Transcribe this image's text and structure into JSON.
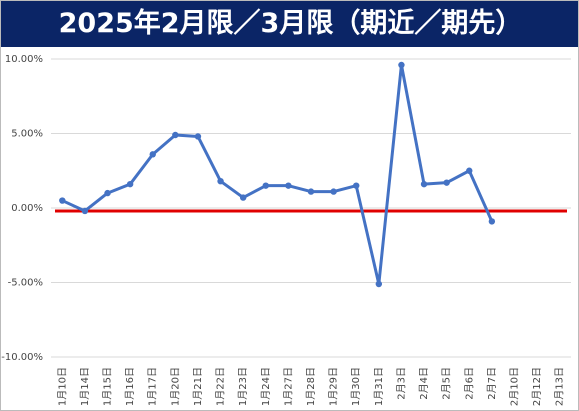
{
  "chart_data": {
    "type": "line",
    "title": "2025年2月限／3月限（期近／期先）",
    "categories": [
      "1月10日",
      "1月14日",
      "1月15日",
      "1月16日",
      "1月17日",
      "1月20日",
      "1月21日",
      "1月22日",
      "1月23日",
      "1月24日",
      "1月27日",
      "1月28日",
      "1月29日",
      "1月30日",
      "1月31日",
      "2月3日",
      "2月4日",
      "2月5日",
      "2月6日",
      "2月7日",
      "2月10日",
      "2月12日",
      "2月13日"
    ],
    "series": [
      {
        "color": "#4472c4",
        "values": [
          0.5,
          -0.2,
          1.0,
          1.6,
          3.6,
          4.9,
          4.8,
          1.8,
          0.7,
          1.5,
          1.5,
          1.1,
          1.1,
          1.5,
          -5.1,
          9.6,
          1.6,
          1.7,
          2.5,
          -0.9,
          null,
          null,
          null
        ]
      }
    ],
    "hline": {
      "value": -0.2,
      "color": "#e00000"
    },
    "ylim": [
      -10,
      10
    ],
    "yticks": [
      {
        "value": -10,
        "label": "-10.00%"
      },
      {
        "value": -5,
        "label": "-5.00%"
      },
      {
        "value": 0,
        "label": "0.00%"
      },
      {
        "value": 5,
        "label": "5.00%"
      },
      {
        "value": 10,
        "label": "10.00%"
      }
    ],
    "grid": true
  }
}
